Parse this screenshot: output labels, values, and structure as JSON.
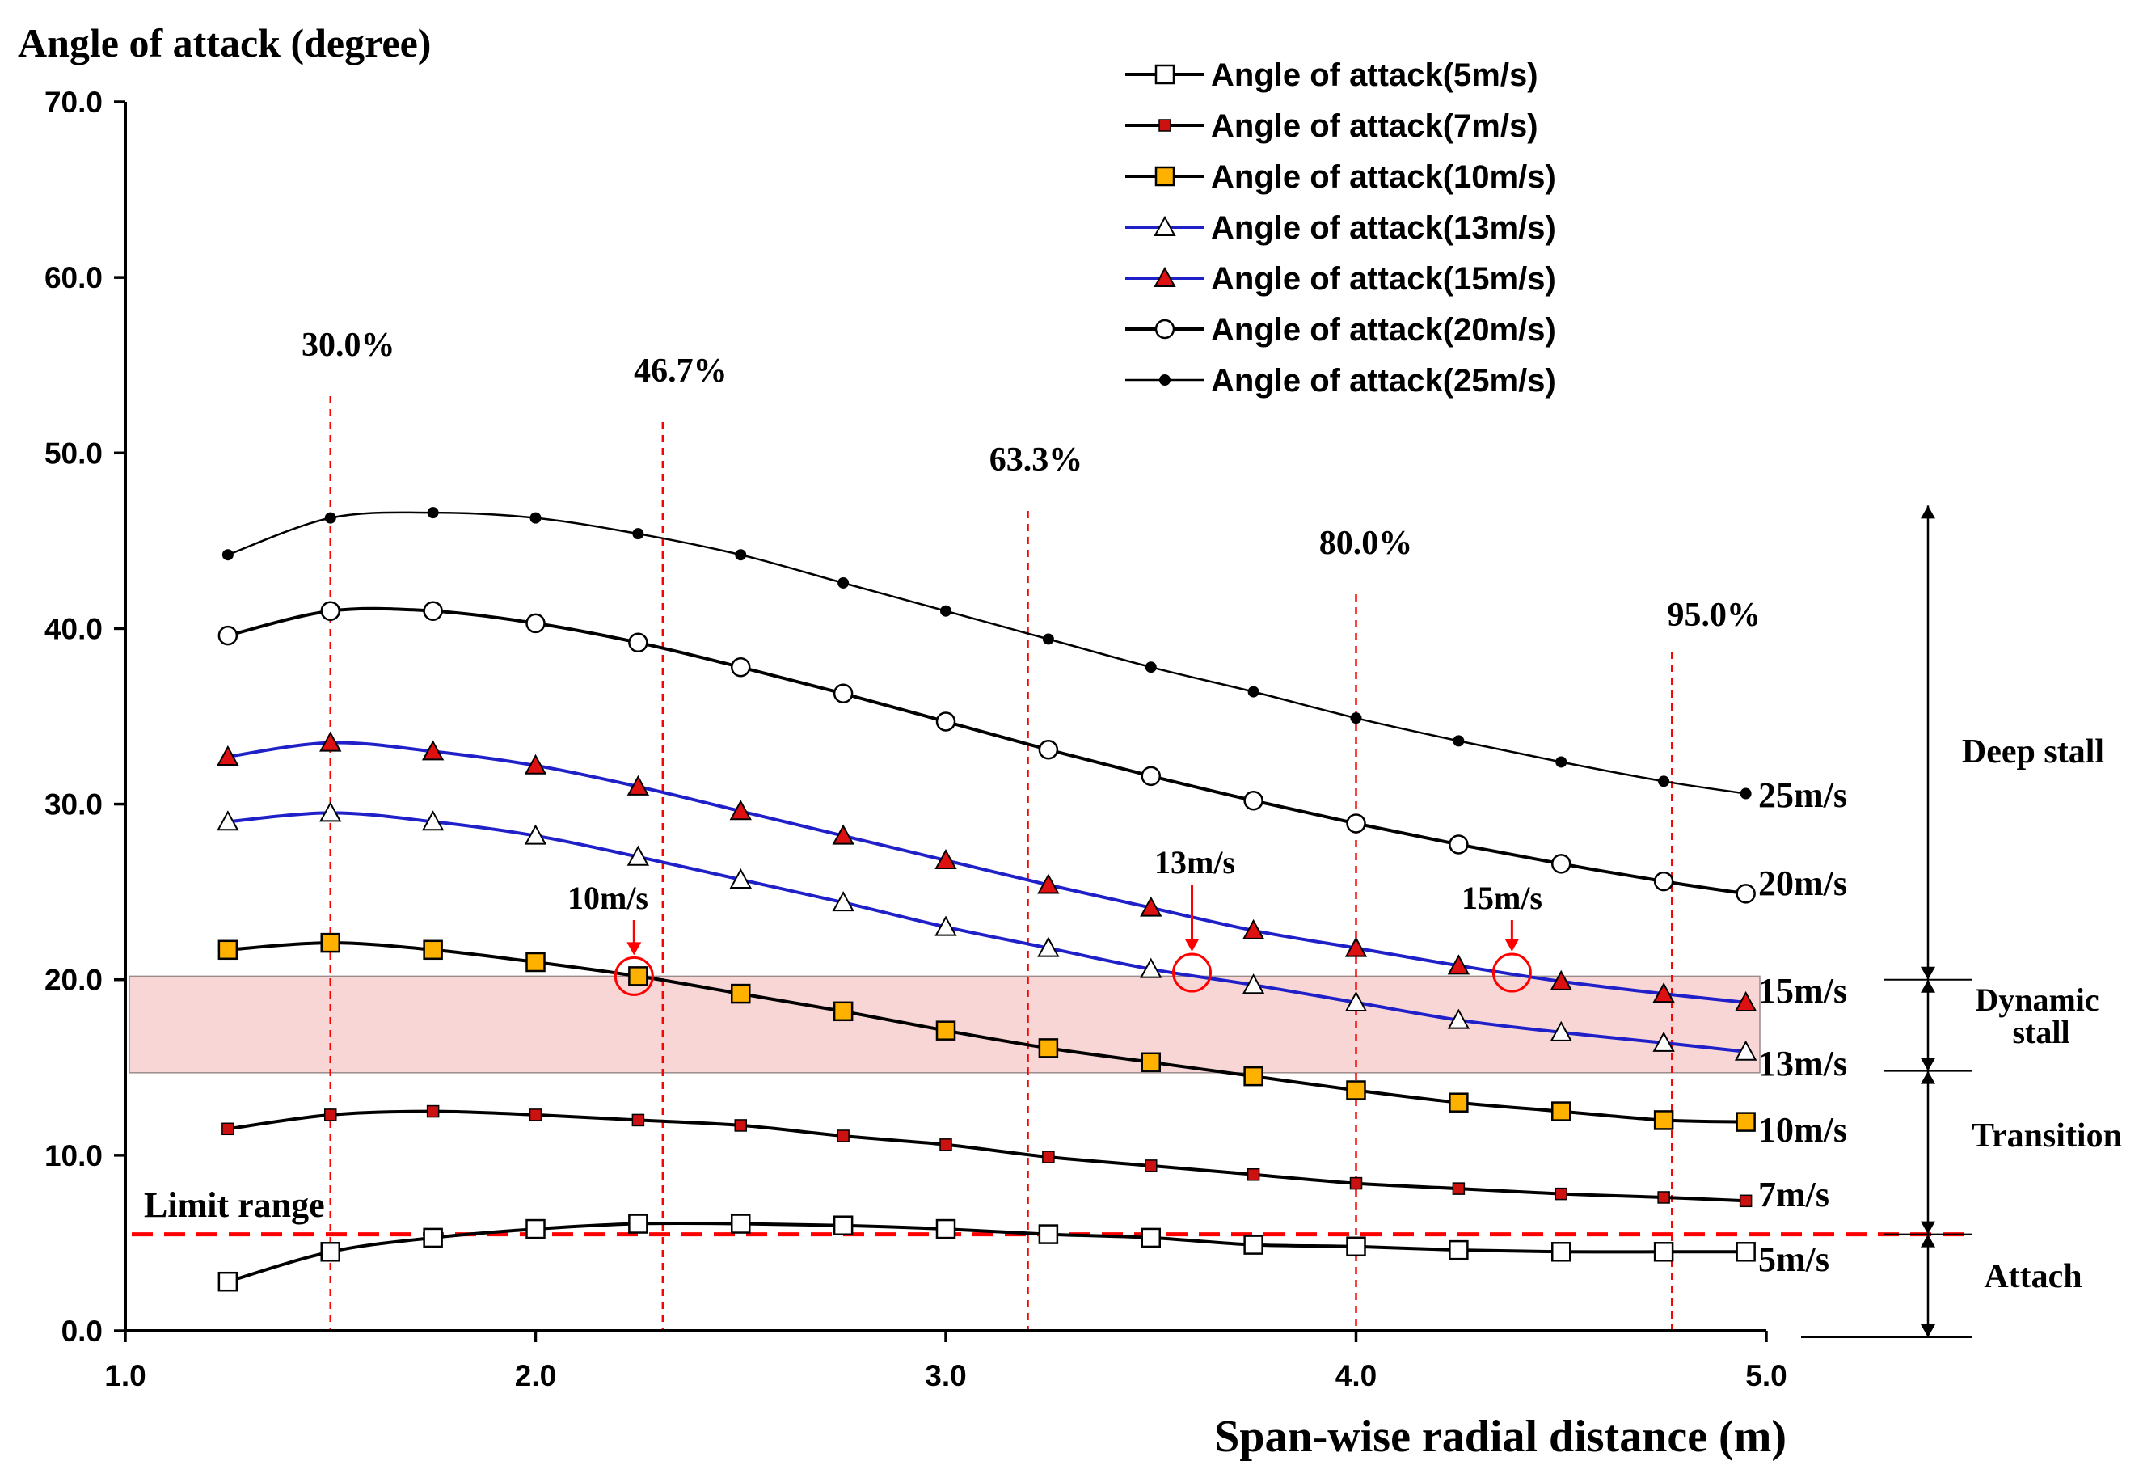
{
  "chart_data": {
    "type": "line",
    "title": "",
    "ylabel": "Angle of attack (degree)",
    "xlabel": "Span-wise radial distance (m)",
    "xlim": [
      1.0,
      5.0
    ],
    "ylim": [
      0.0,
      70.0
    ],
    "xticks": [
      1.0,
      2.0,
      3.0,
      4.0,
      5.0
    ],
    "xtick_labels": [
      "1.0",
      "2.0",
      "3.0",
      "4.0",
      "5.0"
    ],
    "yticks": [
      0,
      10,
      20,
      30,
      40,
      50,
      60,
      70
    ],
    "ytick_labels": [
      "0.0",
      "10.0",
      "20.0",
      "30.0",
      "40.0",
      "50.0",
      "60.0",
      "70.0"
    ],
    "x": [
      1.25,
      1.5,
      1.75,
      2.0,
      2.25,
      2.5,
      2.75,
      3.0,
      3.25,
      3.5,
      3.75,
      4.0,
      4.25,
      4.5,
      4.75,
      4.95
    ],
    "series": [
      {
        "name": "Angle of attack(5m/s)",
        "end_label": "5m/s",
        "line_color": "#000000",
        "marker": "square",
        "marker_fill": "#ffffff",
        "values": [
          2.8,
          4.5,
          5.3,
          5.8,
          6.1,
          6.1,
          6.0,
          5.8,
          5.5,
          5.3,
          4.9,
          4.8,
          4.6,
          4.5,
          4.5,
          4.5
        ]
      },
      {
        "name": "Angle of attack(7m/s)",
        "end_label": "7m/s",
        "line_color": "#000000",
        "marker": "square-small",
        "marker_fill": "#cc1111",
        "values": [
          11.5,
          12.3,
          12.5,
          12.3,
          12.0,
          11.7,
          11.1,
          10.6,
          9.9,
          9.4,
          8.9,
          8.4,
          8.1,
          7.8,
          7.6,
          7.4
        ]
      },
      {
        "name": "Angle of attack(10m/s)",
        "end_label": "10m/s",
        "line_color": "#000000",
        "marker": "square",
        "marker_fill": "#ffb100",
        "values": [
          21.7,
          22.1,
          21.7,
          21.0,
          20.2,
          19.2,
          18.2,
          17.1,
          16.1,
          15.3,
          14.5,
          13.7,
          13.0,
          12.5,
          12.0,
          11.9
        ]
      },
      {
        "name": "Angle of attack(13m/s)",
        "end_label": "13m/s",
        "line_color": "#2020c8",
        "marker": "triangle",
        "marker_fill": "#ffffff",
        "values": [
          29.0,
          29.5,
          29.0,
          28.2,
          27.0,
          25.7,
          24.4,
          23.0,
          21.8,
          20.6,
          19.7,
          18.7,
          17.7,
          17.0,
          16.4,
          15.9
        ]
      },
      {
        "name": "Angle of attack(15m/s)",
        "end_label": "15m/s",
        "line_color": "#2020c8",
        "marker": "triangle",
        "marker_fill": "#dd1111",
        "values": [
          32.7,
          33.5,
          33.0,
          32.2,
          31.0,
          29.6,
          28.2,
          26.8,
          25.4,
          24.1,
          22.8,
          21.8,
          20.8,
          19.9,
          19.2,
          18.7
        ]
      },
      {
        "name": "Angle of attack(20m/s)",
        "end_label": "20m/s",
        "line_color": "#000000",
        "marker": "circle",
        "marker_fill": "#ffffff",
        "values": [
          39.6,
          41.0,
          41.0,
          40.3,
          39.2,
          37.8,
          36.3,
          34.7,
          33.1,
          31.6,
          30.2,
          28.9,
          27.7,
          26.6,
          25.6,
          24.9
        ]
      },
      {
        "name": "Angle of attack(25m/s)",
        "end_label": "25m/s",
        "line_color": "#000000",
        "marker": "dot",
        "marker_fill": "#000000",
        "values": [
          44.2,
          46.3,
          46.6,
          46.3,
          45.4,
          44.2,
          42.6,
          41.0,
          39.4,
          37.8,
          36.4,
          34.9,
          33.6,
          32.4,
          31.3,
          30.6
        ]
      }
    ],
    "reference_lines": [
      {
        "x": 1.5,
        "label": "30.0%"
      },
      {
        "x": 2.31,
        "label": "46.7%"
      },
      {
        "x": 3.2,
        "label": "63.3%"
      },
      {
        "x": 4.0,
        "label": "80.0%"
      },
      {
        "x": 4.77,
        "label": "95.0%"
      }
    ],
    "limit_line": {
      "y": 5.5,
      "label": "Limit range",
      "color": "#ff0000"
    },
    "dynamic_stall_band": {
      "ymin": 14.7,
      "ymax": 20.2,
      "color": "#f7c8c8"
    },
    "stall_points": [
      {
        "label": "10m/s",
        "x": 2.24,
        "y": 20.2
      },
      {
        "label": "13m/s",
        "x": 3.6,
        "y": 20.4
      },
      {
        "label": "15m/s",
        "x": 4.38,
        "y": 20.4
      }
    ],
    "regions": [
      {
        "label": "Deep stall",
        "ymin": 20.0,
        "ymax": 47.0
      },
      {
        "label": "Dynamic stall",
        "ymin": 14.8,
        "ymax": 20.0
      },
      {
        "label": "Transition",
        "ymin": 5.5,
        "ymax": 14.8
      },
      {
        "label": "Attach",
        "ymin": 0.0,
        "ymax": 5.5
      }
    ],
    "legend_position": "top-right"
  }
}
